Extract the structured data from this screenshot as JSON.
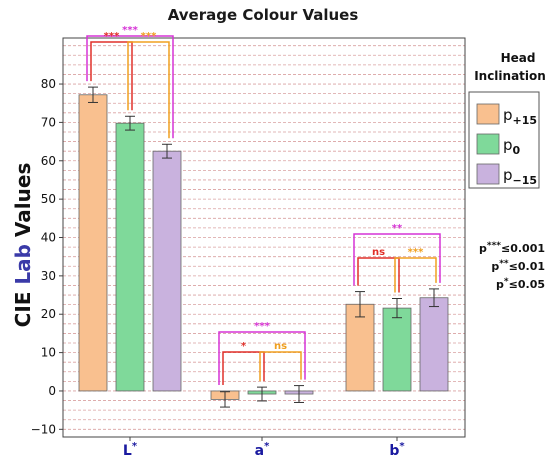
{
  "chart_data": {
    "type": "bar",
    "title": "Average Colour Values",
    "ylabel_parts": [
      "CIE ",
      "Lab",
      " Values"
    ],
    "ylim": [
      -12,
      92
    ],
    "yticks": [
      -10,
      0,
      10,
      20,
      30,
      40,
      50,
      60,
      70,
      80
    ],
    "grid": "dashed horizontal",
    "categories": [
      "L",
      "a",
      "b"
    ],
    "category_marker": "*",
    "legend": {
      "title_line1": "Head",
      "title_line2": "Inclination",
      "position": "right"
    },
    "series": [
      {
        "name": "p",
        "subscript": "+15",
        "color": "#f9c08f",
        "values": [
          77.2,
          -2.2,
          22.6
        ],
        "errors": [
          2.0,
          2.0,
          3.3
        ]
      },
      {
        "name": "p",
        "subscript": "0",
        "color": "#7fd99a",
        "values": [
          69.8,
          -0.8,
          21.6
        ],
        "errors": [
          1.8,
          1.8,
          2.5
        ]
      },
      {
        "name": "p",
        "subscript": "−15",
        "color": "#c9b2de",
        "values": [
          62.5,
          -0.8,
          24.3
        ],
        "errors": [
          1.8,
          2.2,
          2.3
        ]
      }
    ],
    "pvalue_notes": [
      {
        "p": "p",
        "stars": "***",
        "rest": "≤0.001"
      },
      {
        "p": "p",
        "stars": "**",
        "rest": "≤0.01"
      },
      {
        "p": "p",
        "stars": "*",
        "rest": "≤0.05"
      }
    ],
    "significance": [
      {
        "group": 0,
        "from": 0,
        "to": 2,
        "label": "***",
        "color": "#d633d6"
      },
      {
        "group": 0,
        "from": 0,
        "to": 1,
        "label": "***",
        "color": "#e0302a"
      },
      {
        "group": 0,
        "from": 1,
        "to": 2,
        "label": "***",
        "color": "#f0a020"
      },
      {
        "group": 1,
        "from": 0,
        "to": 2,
        "label": "***",
        "color": "#d633d6"
      },
      {
        "group": 1,
        "from": 0,
        "to": 1,
        "label": "*",
        "color": "#e0302a"
      },
      {
        "group": 1,
        "from": 1,
        "to": 2,
        "label": "ns",
        "color": "#f0a020"
      },
      {
        "group": 2,
        "from": 0,
        "to": 2,
        "label": "**",
        "color": "#d633d6"
      },
      {
        "group": 2,
        "from": 0,
        "to": 1,
        "label": "ns",
        "color": "#e0302a"
      },
      {
        "group": 2,
        "from": 1,
        "to": 2,
        "label": "***",
        "color": "#f0a020"
      }
    ]
  }
}
